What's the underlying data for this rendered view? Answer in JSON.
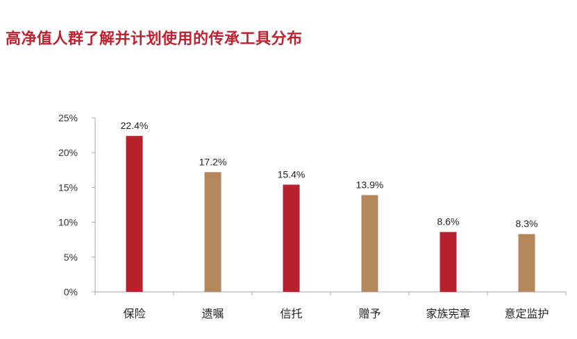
{
  "chart_data": {
    "type": "bar",
    "title": "高净值人群了解并计划使用的传承工具分布",
    "categories": [
      "保险",
      "遗嘱",
      "信托",
      "赠予",
      "家族宪章",
      "意定监护"
    ],
    "values": [
      22.4,
      17.2,
      15.4,
      13.9,
      8.6,
      8.3
    ],
    "data_labels": [
      "22.4%",
      "17.2%",
      "15.4%",
      "13.9%",
      "8.6%",
      "8.3%"
    ],
    "bar_colors": [
      "#b8222e",
      "#b5875b",
      "#b8222e",
      "#b5875b",
      "#b8222e",
      "#b5875b"
    ],
    "yticks": [
      "0%",
      "5%",
      "10%",
      "15%",
      "20%",
      "25%"
    ],
    "ytick_values": [
      0,
      5,
      10,
      15,
      20,
      25
    ],
    "ylim": [
      0,
      25
    ],
    "xlabel": "",
    "ylabel": "",
    "grid": false,
    "legend": "none"
  }
}
